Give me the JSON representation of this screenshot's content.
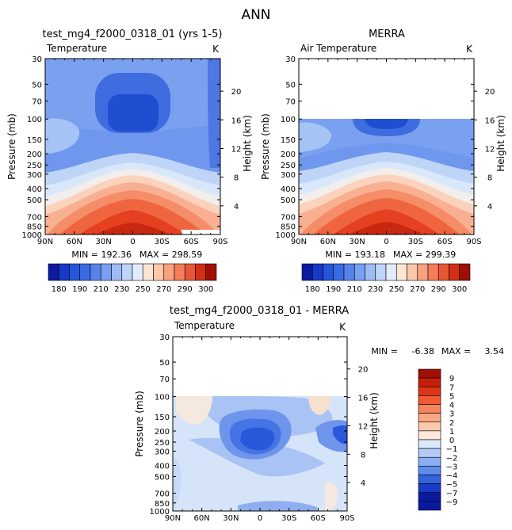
{
  "figure": {
    "title": "ANN",
    "height_label": "Height (km)",
    "y_axis_label": "Pressure (mb)",
    "pressure_ticks": [
      30,
      50,
      70,
      100,
      150,
      200,
      250,
      300,
      400,
      500,
      700,
      850,
      1000
    ],
    "height_ticks": [
      4,
      8,
      12,
      16,
      20
    ],
    "x_ticks": [
      "90N",
      "60N",
      "30N",
      "0",
      "30S",
      "60S",
      "90S"
    ],
    "unit": "K"
  },
  "chart_data": [
    {
      "type": "heatmap",
      "title": "test_mg4_f2000_0318_01 (yrs 1-5)",
      "variable": "Temperature",
      "unit": "K",
      "xlabel": "",
      "ylabel": "Pressure (mb)",
      "y2label": "Height (km)",
      "x_range": [
        90,
        -90
      ],
      "y_range": [
        1000,
        30
      ],
      "min_label": "MIN = 192.36",
      "max_label": "MAX = 298.59",
      "min": 192.36,
      "max": 298.59,
      "colorbar_labels": [
        "180",
        "190",
        "210",
        "230",
        "250",
        "270",
        "290",
        "300"
      ],
      "colorbar_levels": 16
    },
    {
      "type": "heatmap",
      "title": "MERRA",
      "variable": "Air Temperature",
      "unit": "K",
      "xlabel": "",
      "ylabel": "Pressure (mb)",
      "y2label": "Height (km)",
      "x_range": [
        90,
        -90
      ],
      "y_range": [
        1000,
        30
      ],
      "data_top_pressure": 100,
      "min_label": "MIN = 193.18",
      "max_label": "MAX = 299.39",
      "min": 193.18,
      "max": 299.39,
      "colorbar_labels": [
        "180",
        "190",
        "210",
        "230",
        "250",
        "270",
        "290",
        "300"
      ],
      "colorbar_levels": 16
    },
    {
      "type": "heatmap",
      "title": "test_mg4_f2000_0318_01 - MERRA",
      "variable": "Temperature",
      "unit": "K",
      "xlabel": "",
      "ylabel": "Pressure (mb)",
      "y2label": "Height (km)",
      "x_range": [
        90,
        -90
      ],
      "y_range": [
        1000,
        30
      ],
      "data_top_pressure": 100,
      "min_label": "MIN =",
      "min_value": "-6.38",
      "max_label": "MAX =",
      "max_value": "3.54",
      "min": -6.38,
      "max": 3.54,
      "colorbar_labels": [
        "9",
        "7",
        "5",
        "4",
        "3",
        "2",
        "1",
        "0",
        "-1",
        "-2",
        "-3",
        "-4",
        "-5",
        "-7",
        "-9"
      ]
    }
  ]
}
